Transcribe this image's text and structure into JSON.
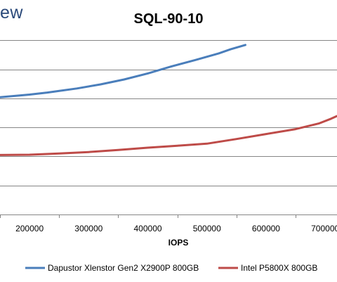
{
  "logo_text": "ew",
  "chart_data": {
    "type": "line",
    "title": "SQL-90-10",
    "xlabel": "IOPS",
    "ylabel": "",
    "x_ticks": [
      200000,
      300000,
      400000,
      500000,
      600000,
      700000
    ],
    "x_tick_labels": [
      "200000",
      "300000",
      "400000",
      "500000",
      "600000",
      "700000"
    ],
    "xlim": [
      150000,
      720000
    ],
    "ylim": [
      0,
      7
    ],
    "y_gridlines": [
      1,
      2,
      3,
      4,
      5,
      6
    ],
    "grid": true,
    "legend_position": "bottom",
    "series": [
      {
        "name": "Dapustor Xlenstor Gen2 X2900P 800GB",
        "color": "#4a7ebb",
        "x": [
          150000,
          200000,
          230000,
          280000,
          320000,
          360000,
          400000,
          440000,
          480000,
          520000,
          540000,
          565000
        ],
        "y": [
          4.04,
          4.13,
          4.2,
          4.34,
          4.48,
          4.65,
          4.86,
          5.1,
          5.32,
          5.55,
          5.69,
          5.84
        ]
      },
      {
        "name": "Intel P5800X 800GB",
        "color": "#be4b48",
        "x": [
          150000,
          200000,
          250000,
          300000,
          350000,
          400000,
          450000,
          500000,
          550000,
          600000,
          650000,
          690000,
          710000,
          720000
        ],
        "y": [
          2.05,
          2.06,
          2.1,
          2.15,
          2.22,
          2.3,
          2.37,
          2.44,
          2.6,
          2.77,
          2.94,
          3.14,
          3.3,
          3.39
        ]
      }
    ]
  }
}
